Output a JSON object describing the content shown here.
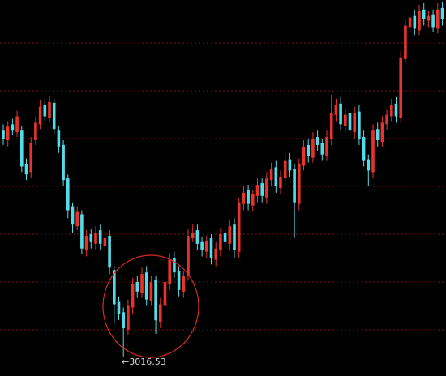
{
  "chart_data": {
    "type": "candlestick",
    "annotation": "←3016.53",
    "up_color": "#e8332c",
    "down_color": "#54dbe8",
    "grid": true,
    "grid_color": "#7a1414",
    "ylim": [
      2992,
      3464
    ],
    "yticks": [
      3050,
      3110,
      3170,
      3230,
      3290,
      3350,
      3410
    ],
    "open": [
      3300,
      3288,
      3308,
      3298,
      3300,
      3258,
      3248,
      3288,
      3308,
      3332,
      3316,
      3335,
      3300,
      3282,
      3240,
      3205,
      3180,
      3195,
      3150,
      3170,
      3158,
      3175,
      3155,
      3168,
      3125,
      3085,
      3072,
      3050,
      3078,
      3110,
      3096,
      3122,
      3086,
      3112,
      3060,
      3080,
      3108,
      3140,
      3124,
      3098,
      3118,
      3165,
      3175,
      3160,
      3148,
      3165,
      3138,
      3150,
      3172,
      3158,
      3182,
      3148,
      3208,
      3225,
      3206,
      3218,
      3234,
      3216,
      3238,
      3254,
      3228,
      3240,
      3264,
      3252,
      3208,
      3256,
      3282,
      3266,
      3292,
      3284,
      3268,
      3290,
      3320,
      3334,
      3306,
      3322,
      3298,
      3324,
      3292,
      3264,
      3248,
      3302,
      3286,
      3308,
      3318,
      3334,
      3316,
      3390,
      3430,
      3444,
      3426,
      3452,
      3438,
      3446,
      3428,
      3454
    ],
    "high": [
      3308,
      3312,
      3315,
      3325,
      3306,
      3265,
      3292,
      3318,
      3338,
      3340,
      3344,
      3340,
      3306,
      3288,
      3245,
      3210,
      3205,
      3200,
      3175,
      3176,
      3180,
      3182,
      3172,
      3175,
      3130,
      3092,
      3078,
      3088,
      3115,
      3118,
      3128,
      3130,
      3118,
      3118,
      3090,
      3118,
      3146,
      3148,
      3130,
      3124,
      3176,
      3182,
      3182,
      3166,
      3168,
      3170,
      3160,
      3178,
      3178,
      3188,
      3190,
      3216,
      3230,
      3232,
      3226,
      3240,
      3240,
      3248,
      3260,
      3262,
      3250,
      3270,
      3272,
      3258,
      3265,
      3288,
      3290,
      3298,
      3300,
      3290,
      3300,
      3345,
      3340,
      3342,
      3328,
      3330,
      3330,
      3332,
      3300,
      3270,
      3308,
      3310,
      3318,
      3326,
      3340,
      3342,
      3400,
      3440,
      3448,
      3452,
      3458,
      3460,
      3450,
      3452,
      3460,
      3462
    ],
    "low": [
      3282,
      3280,
      3294,
      3292,
      3248,
      3238,
      3240,
      3282,
      3302,
      3312,
      3310,
      3295,
      3272,
      3230,
      3190,
      3172,
      3175,
      3145,
      3142,
      3152,
      3150,
      3150,
      3148,
      3120,
      3058,
      3062,
      3016.53,
      3044,
      3070,
      3090,
      3090,
      3080,
      3080,
      3045,
      3052,
      3074,
      3100,
      3115,
      3092,
      3090,
      3112,
      3160,
      3150,
      3142,
      3140,
      3132,
      3130,
      3142,
      3152,
      3150,
      3140,
      3140,
      3200,
      3200,
      3198,
      3210,
      3210,
      3208,
      3230,
      3222,
      3220,
      3232,
      3242,
      3165,
      3200,
      3250,
      3260,
      3260,
      3275,
      3262,
      3262,
      3282,
      3312,
      3300,
      3298,
      3292,
      3290,
      3282,
      3255,
      3230,
      3240,
      3280,
      3280,
      3300,
      3312,
      3310,
      3310,
      3385,
      3425,
      3420,
      3420,
      3432,
      3430,
      3424,
      3422,
      3432
    ],
    "close": [
      3290,
      3305,
      3300,
      3318,
      3255,
      3245,
      3285,
      3310,
      3330,
      3318,
      3336,
      3302,
      3280,
      3238,
      3200,
      3182,
      3198,
      3152,
      3168,
      3160,
      3172,
      3158,
      3165,
      3128,
      3082,
      3070,
      3052,
      3080,
      3108,
      3098,
      3120,
      3088,
      3110,
      3062,
      3082,
      3110,
      3138,
      3122,
      3100,
      3118,
      3168,
      3172,
      3158,
      3150,
      3162,
      3140,
      3152,
      3170,
      3160,
      3180,
      3150,
      3210,
      3222,
      3208,
      3220,
      3232,
      3218,
      3240,
      3252,
      3230,
      3242,
      3262,
      3250,
      3210,
      3258,
      3280,
      3268,
      3290,
      3282,
      3270,
      3292,
      3322,
      3332,
      3308,
      3320,
      3300,
      3322,
      3290,
      3262,
      3250,
      3300,
      3288,
      3310,
      3320,
      3332,
      3318,
      3392,
      3432,
      3442,
      3428,
      3450,
      3440,
      3444,
      3430,
      3452,
      3440
    ]
  }
}
